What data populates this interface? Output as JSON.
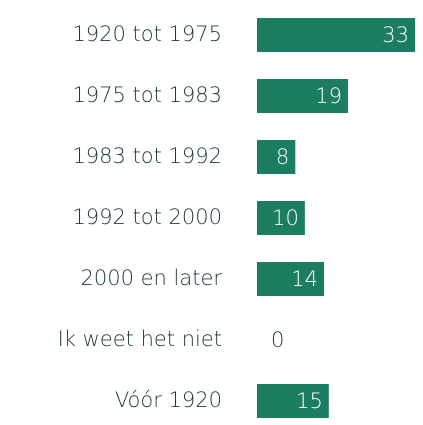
{
  "chart_data": {
    "type": "bar",
    "orientation": "horizontal",
    "categories": [
      "1920 tot 1975",
      "1975 tot 1983",
      "1983 tot 1992",
      "1992 tot 2000",
      "2000 en later",
      "Ik weet het niet",
      "Vóór 1920"
    ],
    "values": [
      33,
      19,
      8,
      10,
      14,
      0,
      15
    ],
    "color": "#1b7d62"
  }
}
